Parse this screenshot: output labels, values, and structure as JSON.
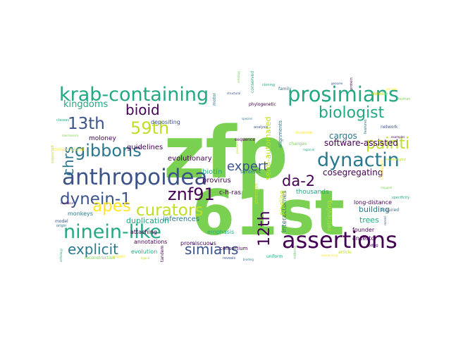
{
  "palette": {
    "green": "#7ad151",
    "teal": "#22a884",
    "blue": "#2a788e",
    "darkblue": "#3b528b",
    "purple": "#440154",
    "lightgreen": "#bddf26",
    "yellow": "#fde725"
  },
  "words": [
    {
      "text": "zfp",
      "color": "green"
    },
    {
      "text": "61st",
      "color": "green"
    },
    {
      "text": "anthropoidea",
      "color": "darkblue"
    },
    {
      "text": "assertions",
      "color": "purple"
    },
    {
      "text": "krab-containing",
      "color": "teal"
    },
    {
      "text": "prosimians",
      "color": "teal"
    },
    {
      "text": "ninein-like",
      "color": "teal"
    },
    {
      "text": "dynactin",
      "color": "blue"
    },
    {
      "text": "gibbons",
      "color": "blue"
    },
    {
      "text": "biologist",
      "color": "teal"
    },
    {
      "text": "curators",
      "color": "lightgreen"
    },
    {
      "text": "59th",
      "color": "lightgreen"
    },
    {
      "text": "13th",
      "color": "darkblue"
    },
    {
      "text": "znf91",
      "color": "purple"
    },
    {
      "text": "dynein-1",
      "color": "darkblue"
    },
    {
      "text": "12th",
      "color": "purple"
    },
    {
      "text": "apes",
      "color": "yellow"
    },
    {
      "text": "painti",
      "color": "lightgreen"
    },
    {
      "text": "da-2",
      "color": "purple"
    },
    {
      "text": "simians",
      "color": "darkblue"
    },
    {
      "text": "explicit",
      "color": "blue"
    },
    {
      "text": "bioid",
      "color": "purple"
    },
    {
      "text": "chrs",
      "color": "blue"
    },
    {
      "text": "expert",
      "color": "darkblue"
    },
    {
      "text": "kingdoms",
      "color": "teal"
    },
    {
      "text": "software-assisted",
      "color": "purple"
    },
    {
      "text": "semi-automated",
      "color": "lightgreen"
    },
    {
      "text": "duplication",
      "color": "teal"
    },
    {
      "text": "cosegregating",
      "color": "purple"
    },
    {
      "text": "cargos",
      "color": "blue"
    },
    {
      "text": "evolutionary",
      "color": "purple"
    },
    {
      "text": "inferences",
      "color": "blue"
    },
    {
      "text": "biotin",
      "color": "teal"
    },
    {
      "text": "provirus",
      "color": "purple"
    },
    {
      "text": "c-h-ras",
      "color": "purple"
    },
    {
      "text": "guidelines",
      "color": "purple"
    },
    {
      "text": "moloney",
      "color": "purple"
    },
    {
      "text": "depositing",
      "color": "darkblue"
    },
    {
      "text": "interactomes",
      "color": "blue"
    },
    {
      "text": "pipeline",
      "color": "lightgreen"
    },
    {
      "text": "retrieving",
      "color": "lightgreen"
    },
    {
      "text": "building",
      "color": "blue"
    },
    {
      "text": "trees",
      "color": "teal"
    },
    {
      "text": "thousands",
      "color": "teal"
    },
    {
      "text": "long-distance",
      "color": "purple"
    },
    {
      "text": "founder",
      "color": "purple"
    },
    {
      "text": "ancestor",
      "color": "purple"
    },
    {
      "text": "monkeys",
      "color": "blue"
    },
    {
      "text": "attaching",
      "color": "purple"
    },
    {
      "text": "promiscuous",
      "color": "purple"
    },
    {
      "text": "evolution",
      "color": "teal"
    },
    {
      "text": "annotations",
      "color": "purple"
    },
    {
      "text": "emphasis",
      "color": "teal"
    },
    {
      "text": "consortium",
      "color": "purple"
    },
    {
      "text": "syntenic",
      "color": "blue"
    },
    {
      "text": "strength",
      "color": "lightgreen"
    },
    {
      "text": "alignments",
      "color": "blue"
    },
    {
      "text": "phylogenetic",
      "color": "purple"
    }
  ],
  "small_words": [
    "ontology",
    "cloning",
    "family",
    "genome",
    "protein",
    "domain",
    "primate",
    "human",
    "conserved",
    "species",
    "analysis",
    "sequence",
    "pressure",
    "hundreds",
    "changes",
    "regional",
    "features",
    "network",
    "examples",
    "rearranged",
    "clustered",
    "mapped",
    "specificity",
    "acquired",
    "record",
    "coding",
    "article",
    "sequencing",
    "rodents",
    "uniform",
    "binding",
    "reveals",
    "tandem",
    "ligand",
    "project",
    "reconstruction",
    "orthology",
    "origin",
    "model",
    "mutation",
    "supported",
    "computational",
    "mechanism",
    "classes",
    "motor",
    "structural"
  ]
}
